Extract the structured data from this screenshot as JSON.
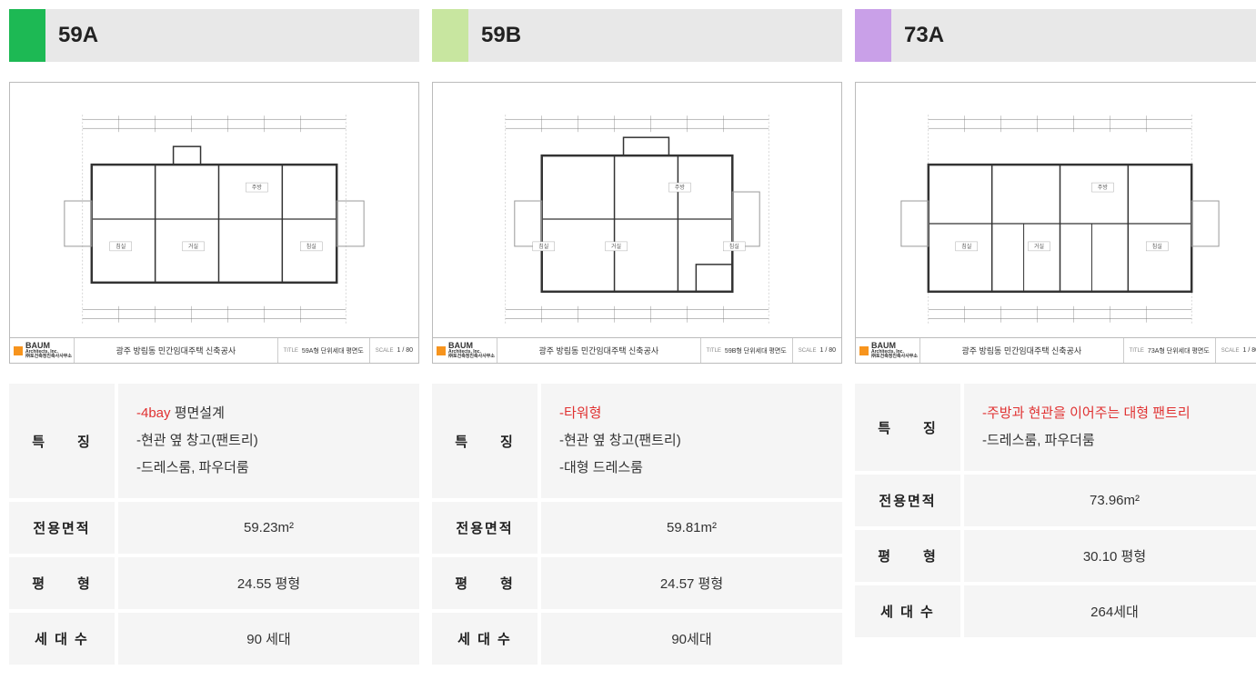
{
  "title_block": {
    "logo_name": "BAUM",
    "logo_sub1": "Architects, Inc.",
    "logo_sub2": "㈜토건축정진축사사무소",
    "project": "광주 방림동 민간임대주택 신축공사",
    "scale_label": "SCALE",
    "scale_value": "1 / 80",
    "title_label": "TITLE"
  },
  "row_labels": {
    "features": "특　　징",
    "area": "전용면적",
    "pyeong": "평　　형",
    "units": "세 대 수"
  },
  "cards": [
    {
      "id": "59A",
      "tab_color": "#1db954",
      "title": "59A",
      "tb_title": "59A형 단위세대 평면도",
      "features": [
        {
          "highlight": "-4bay",
          "rest": " 평면설계"
        },
        {
          "highlight": "",
          "rest": "-현관 옆 창고(팬트리)"
        },
        {
          "highlight": "",
          "rest": "-드레스룸, 파우더룸"
        }
      ],
      "area": "59.23m²",
      "pyeong": "24.55 평형",
      "units": "90 세대"
    },
    {
      "id": "59B",
      "tab_color": "#c8e6a0",
      "title": "59B",
      "tb_title": "59B형 단위세대 평면도",
      "features": [
        {
          "highlight": "-타워형",
          "rest": ""
        },
        {
          "highlight": "",
          "rest": "-현관 옆 창고(팬트리)"
        },
        {
          "highlight": "",
          "rest": "-대형 드레스룸"
        }
      ],
      "area": "59.81m²",
      "pyeong": "24.57 평형",
      "units": "90세대"
    },
    {
      "id": "73A",
      "tab_color": "#c9a0e8",
      "title": "73A",
      "tb_title": "73A형 단위세대 평면도",
      "features": [
        {
          "highlight": "-주방과 현관을 이어주는 대형 팬트리",
          "rest": ""
        },
        {
          "highlight": "",
          "rest": "-드레스룸, 파우더룸"
        }
      ],
      "area": "73.96m²",
      "pyeong": "30.10 평형",
      "units": "264세대"
    }
  ],
  "floorplan_style": {
    "stroke": "#333333",
    "stroke_thin": "#999999",
    "dim_stroke": "#777777",
    "room_label_fontsize": 6,
    "room_label_color": "#555555"
  }
}
